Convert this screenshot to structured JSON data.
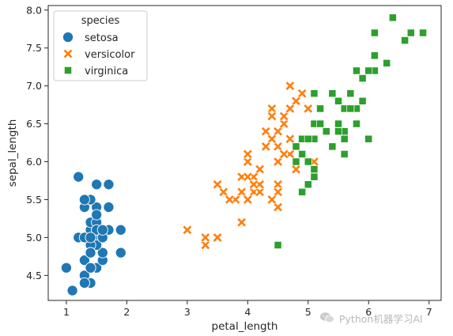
{
  "chart_data": {
    "type": "scatter",
    "title": "",
    "xlabel": "petal_length",
    "ylabel": "sepal_length",
    "xlim": [
      0.7,
      7.2
    ],
    "ylim": [
      4.17,
      8.06
    ],
    "xticks": [
      1,
      2,
      3,
      4,
      5,
      6,
      7
    ],
    "yticks": [
      4.5,
      5.0,
      5.5,
      6.0,
      6.5,
      7.0,
      7.5,
      8.0
    ],
    "xtick_labels": [
      "1",
      "2",
      "3",
      "4",
      "5",
      "6",
      "7"
    ],
    "ytick_labels": [
      "4.5",
      "5.0",
      "5.5",
      "6.0",
      "6.5",
      "7.0",
      "7.5",
      "8.0"
    ],
    "grid": false,
    "legend": {
      "title": "species",
      "placement": "top-left"
    },
    "series": [
      {
        "name": "setosa",
        "marker": "circle",
        "color": "#1f77b4",
        "points": [
          [
            1.4,
            5.1
          ],
          [
            1.4,
            4.9
          ],
          [
            1.3,
            4.7
          ],
          [
            1.5,
            4.6
          ],
          [
            1.4,
            5.0
          ],
          [
            1.7,
            5.4
          ],
          [
            1.4,
            4.6
          ],
          [
            1.5,
            5.0
          ],
          [
            1.4,
            4.4
          ],
          [
            1.5,
            4.9
          ],
          [
            1.5,
            5.4
          ],
          [
            1.6,
            4.8
          ],
          [
            1.4,
            4.8
          ],
          [
            1.1,
            4.3
          ],
          [
            1.2,
            5.8
          ],
          [
            1.5,
            5.7
          ],
          [
            1.3,
            5.4
          ],
          [
            1.4,
            5.1
          ],
          [
            1.7,
            5.7
          ],
          [
            1.5,
            5.1
          ],
          [
            1.7,
            5.4
          ],
          [
            1.5,
            5.1
          ],
          [
            1.0,
            4.6
          ],
          [
            1.7,
            5.1
          ],
          [
            1.9,
            4.8
          ],
          [
            1.6,
            5.0
          ],
          [
            1.6,
            5.0
          ],
          [
            1.5,
            5.2
          ],
          [
            1.4,
            5.2
          ],
          [
            1.6,
            4.7
          ],
          [
            1.6,
            4.8
          ],
          [
            1.5,
            5.4
          ],
          [
            1.5,
            5.2
          ],
          [
            1.4,
            5.5
          ],
          [
            1.5,
            4.9
          ],
          [
            1.2,
            5.0
          ],
          [
            1.3,
            5.5
          ],
          [
            1.4,
            4.9
          ],
          [
            1.3,
            4.4
          ],
          [
            1.5,
            5.1
          ],
          [
            1.3,
            5.0
          ],
          [
            1.3,
            4.5
          ],
          [
            1.3,
            4.4
          ],
          [
            1.6,
            5.0
          ],
          [
            1.9,
            5.1
          ],
          [
            1.4,
            4.8
          ],
          [
            1.6,
            5.1
          ],
          [
            1.4,
            4.6
          ],
          [
            1.5,
            5.3
          ],
          [
            1.4,
            5.0
          ]
        ]
      },
      {
        "name": "versicolor",
        "marker": "x",
        "color": "#ff7f0e",
        "points": [
          [
            4.7,
            7.0
          ],
          [
            4.5,
            6.4
          ],
          [
            4.9,
            6.9
          ],
          [
            4.0,
            5.5
          ],
          [
            4.6,
            6.5
          ],
          [
            4.5,
            5.7
          ],
          [
            4.7,
            6.3
          ],
          [
            3.3,
            4.9
          ],
          [
            4.6,
            6.6
          ],
          [
            3.9,
            5.2
          ],
          [
            3.5,
            5.0
          ],
          [
            4.2,
            5.9
          ],
          [
            4.0,
            6.0
          ],
          [
            4.7,
            6.1
          ],
          [
            3.6,
            5.6
          ],
          [
            4.4,
            6.7
          ],
          [
            4.5,
            5.6
          ],
          [
            4.1,
            5.8
          ],
          [
            4.5,
            6.2
          ],
          [
            3.9,
            5.6
          ],
          [
            4.8,
            5.9
          ],
          [
            4.0,
            6.1
          ],
          [
            4.9,
            6.3
          ],
          [
            4.7,
            6.1
          ],
          [
            4.3,
            6.4
          ],
          [
            4.4,
            6.6
          ],
          [
            4.8,
            6.8
          ],
          [
            5.0,
            6.7
          ],
          [
            4.5,
            6.0
          ],
          [
            3.5,
            5.7
          ],
          [
            3.8,
            5.5
          ],
          [
            3.7,
            5.5
          ],
          [
            3.9,
            5.8
          ],
          [
            5.1,
            6.0
          ],
          [
            4.5,
            5.4
          ],
          [
            4.5,
            6.0
          ],
          [
            4.7,
            6.7
          ],
          [
            4.4,
            6.3
          ],
          [
            4.1,
            5.6
          ],
          [
            4.0,
            5.5
          ],
          [
            4.4,
            5.5
          ],
          [
            4.6,
            6.1
          ],
          [
            4.0,
            5.8
          ],
          [
            3.3,
            5.0
          ],
          [
            4.2,
            5.6
          ],
          [
            4.2,
            5.7
          ],
          [
            4.2,
            5.7
          ],
          [
            4.3,
            6.2
          ],
          [
            3.0,
            5.1
          ],
          [
            4.1,
            5.7
          ]
        ]
      },
      {
        "name": "virginica",
        "marker": "square",
        "color": "#2ca02c",
        "points": [
          [
            6.0,
            6.3
          ],
          [
            5.1,
            5.8
          ],
          [
            5.9,
            7.1
          ],
          [
            5.6,
            6.3
          ],
          [
            5.8,
            6.5
          ],
          [
            6.6,
            7.6
          ],
          [
            4.5,
            4.9
          ],
          [
            6.3,
            7.3
          ],
          [
            5.8,
            6.7
          ],
          [
            6.1,
            7.2
          ],
          [
            5.1,
            6.5
          ],
          [
            5.3,
            6.4
          ],
          [
            5.5,
            6.8
          ],
          [
            5.0,
            5.7
          ],
          [
            5.1,
            5.8
          ],
          [
            5.3,
            6.4
          ],
          [
            5.5,
            6.5
          ],
          [
            6.7,
            7.7
          ],
          [
            6.9,
            7.7
          ],
          [
            5.0,
            6.0
          ],
          [
            5.7,
            6.9
          ],
          [
            4.9,
            5.6
          ],
          [
            6.7,
            7.7
          ],
          [
            4.9,
            6.3
          ],
          [
            5.7,
            6.7
          ],
          [
            6.0,
            7.2
          ],
          [
            4.8,
            6.2
          ],
          [
            4.9,
            6.1
          ],
          [
            5.6,
            6.4
          ],
          [
            5.8,
            7.2
          ],
          [
            6.1,
            7.4
          ],
          [
            6.4,
            7.9
          ],
          [
            5.6,
            6.4
          ],
          [
            5.1,
            6.3
          ],
          [
            5.6,
            6.1
          ],
          [
            6.1,
            7.7
          ],
          [
            5.6,
            6.3
          ],
          [
            5.5,
            6.4
          ],
          [
            4.8,
            6.0
          ],
          [
            5.4,
            6.9
          ],
          [
            5.6,
            6.7
          ],
          [
            5.1,
            6.9
          ],
          [
            5.1,
            5.8
          ],
          [
            5.9,
            6.8
          ],
          [
            5.7,
            6.7
          ],
          [
            5.2,
            6.7
          ],
          [
            5.0,
            6.3
          ],
          [
            5.2,
            6.5
          ],
          [
            5.4,
            6.2
          ],
          [
            5.1,
            5.9
          ]
        ]
      }
    ]
  },
  "watermark": {
    "text": "Python机器学习AI",
    "icon": "wechat-icon"
  }
}
